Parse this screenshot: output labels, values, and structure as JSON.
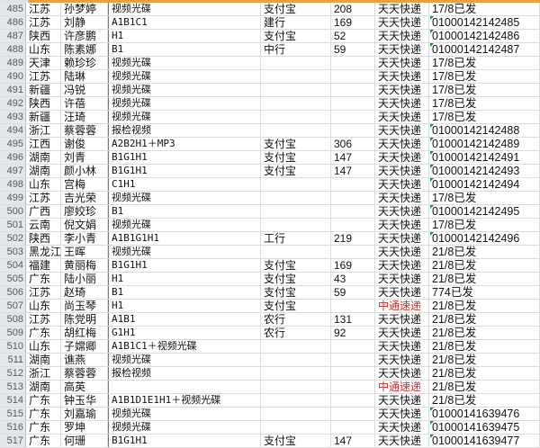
{
  "colors": {
    "header_accent": "#e8a040",
    "red_courier": "#c8322e",
    "text_flag": "#1a8a2a"
  },
  "rows": [
    {
      "n": "485",
      "prov": "江苏",
      "name": "孙梦婷",
      "prod": "视频光碟",
      "pay": "支付宝",
      "amt": "208",
      "cour": "天天快递",
      "track": "17/8已发",
      "flag": false,
      "red": false
    },
    {
      "n": "486",
      "prov": "江苏",
      "name": "刘静",
      "prod": "A1B1C1",
      "pay": "建行",
      "amt": "169",
      "cour": "天天快递",
      "track": "01000142142485",
      "flag": true,
      "red": false
    },
    {
      "n": "487",
      "prov": "陕西",
      "name": "许彦鹏",
      "prod": "H1",
      "pay": "支付宝",
      "amt": "52",
      "cour": "天天快递",
      "track": "01000142142486",
      "flag": true,
      "red": false
    },
    {
      "n": "488",
      "prov": "山东",
      "name": "陈素娜",
      "prod": "B1",
      "pay": "中行",
      "amt": "59",
      "cour": "天天快递",
      "track": "01000142142487",
      "flag": true,
      "red": false
    },
    {
      "n": "489",
      "prov": "天津",
      "name": "赖珍珍",
      "prod": "视频光碟",
      "pay": "",
      "amt": "",
      "cour": "天天快递",
      "track": "17/8已发",
      "flag": false,
      "red": false
    },
    {
      "n": "490",
      "prov": "江苏",
      "name": "陆琳",
      "prod": "视频光碟",
      "pay": "",
      "amt": "",
      "cour": "天天快递",
      "track": "17/8已发",
      "flag": false,
      "red": false
    },
    {
      "n": "491",
      "prov": "新疆",
      "name": "冯锐",
      "prod": "视频光碟",
      "pay": "",
      "amt": "",
      "cour": "天天快递",
      "track": "17/8已发",
      "flag": false,
      "red": false
    },
    {
      "n": "492",
      "prov": "陕西",
      "name": "许蓓",
      "prod": "视频光碟",
      "pay": "",
      "amt": "",
      "cour": "天天快递",
      "track": "17/8已发",
      "flag": false,
      "red": false
    },
    {
      "n": "493",
      "prov": "新疆",
      "name": "汪琦",
      "prod": "视频光碟",
      "pay": "",
      "amt": "",
      "cour": "天天快递",
      "track": "17/8已发",
      "flag": false,
      "red": false
    },
    {
      "n": "494",
      "prov": "浙江",
      "name": "蔡蓉蓉",
      "prod": "报检视频",
      "pay": "",
      "amt": "",
      "cour": "天天快递",
      "track": "01000142142488",
      "flag": true,
      "red": false
    },
    {
      "n": "495",
      "prov": "江西",
      "name": "谢俊",
      "prod": "A2B2H1＋MP3",
      "pay": "支付宝",
      "amt": "306",
      "cour": "天天快递",
      "track": "01000142142489",
      "flag": true,
      "red": false
    },
    {
      "n": "496",
      "prov": "湖南",
      "name": "刘青",
      "prod": "B1G1H1",
      "pay": "支付宝",
      "amt": "147",
      "cour": "天天快递",
      "track": "01000142142491",
      "flag": true,
      "red": false
    },
    {
      "n": "497",
      "prov": "湖南",
      "name": "颜小林",
      "prod": "B1G1H1",
      "pay": "支付宝",
      "amt": "147",
      "cour": "天天快递",
      "track": "01000142142493",
      "flag": true,
      "red": false
    },
    {
      "n": "498",
      "prov": "山东",
      "name": "宫梅",
      "prod": "C1H1",
      "pay": "",
      "amt": "",
      "cour": "天天快递",
      "track": "01000142142494",
      "flag": true,
      "red": false
    },
    {
      "n": "499",
      "prov": "江苏",
      "name": "吉光荣",
      "prod": "视频光碟",
      "pay": "",
      "amt": "",
      "cour": "天天快递",
      "track": "17/8已发",
      "flag": false,
      "red": false
    },
    {
      "n": "500",
      "prov": "广西",
      "name": "廖姣珍",
      "prod": "B1",
      "pay": "",
      "amt": "",
      "cour": "天天快递",
      "track": "01000142142495",
      "flag": true,
      "red": false
    },
    {
      "n": "501",
      "prov": "云南",
      "name": "倪文娟",
      "prod": "视频光碟",
      "pay": "",
      "amt": "",
      "cour": "天天快递",
      "track": "17/8已发",
      "flag": false,
      "red": false
    },
    {
      "n": "502",
      "prov": "陕西",
      "name": "李小青",
      "prod": "A1B1G1H1",
      "pay": "工行",
      "amt": "219",
      "cour": "天天快递",
      "track": "01000142142496",
      "flag": true,
      "red": false
    },
    {
      "n": "503",
      "prov": "黑龙江",
      "name": "王晖",
      "prod": "视频光碟",
      "pay": "",
      "amt": "",
      "cour": "天天快递",
      "track": "21/8已发",
      "flag": false,
      "red": false
    },
    {
      "n": "504",
      "prov": "福建",
      "name": "黄丽梅",
      "prod": "B1G1H1",
      "pay": "支付宝",
      "amt": "169",
      "cour": "天天快递",
      "track": "21/8已发",
      "flag": false,
      "red": false
    },
    {
      "n": "505",
      "prov": "广东",
      "name": "陆小丽",
      "prod": "H1",
      "pay": "支付宝",
      "amt": "43",
      "cour": "天天快递",
      "track": "21/8已发",
      "flag": false,
      "red": false
    },
    {
      "n": "506",
      "prov": "江苏",
      "name": "赵琦",
      "prod": "B1",
      "pay": "支付宝",
      "amt": "59",
      "cour": "天天快递",
      "track": "774已发",
      "flag": false,
      "red": false
    },
    {
      "n": "507",
      "prov": "山东",
      "name": "尚玉琴",
      "prod": "H1",
      "pay": "支付宝",
      "amt": "",
      "cour": "中通速递",
      "track": "21/8已发",
      "flag": false,
      "red": true
    },
    {
      "n": "508",
      "prov": "江苏",
      "name": "陈党明",
      "prod": "A1B1",
      "pay": "农行",
      "amt": "131",
      "cour": "天天快递",
      "track": "21/8已发",
      "flag": false,
      "red": false
    },
    {
      "n": "509",
      "prov": "广东",
      "name": "胡红梅",
      "prod": "G1H1",
      "pay": "农行",
      "amt": "92",
      "cour": "天天快递",
      "track": "21/8已发",
      "flag": false,
      "red": false
    },
    {
      "n": "510",
      "prov": "山东",
      "name": "子嫦卿",
      "prod": "A1B1C1＋视频光碟",
      "pay": "",
      "amt": "",
      "cour": "天天快递",
      "track": "21/8已发",
      "flag": false,
      "red": false
    },
    {
      "n": "511",
      "prov": "湖南",
      "name": "谯燕",
      "prod": "视频光碟",
      "pay": "",
      "amt": "",
      "cour": "天天快递",
      "track": "21/8已发",
      "flag": false,
      "red": false
    },
    {
      "n": "512",
      "prov": "浙江",
      "name": "蔡蓉蓉",
      "prod": "报检视频",
      "pay": "",
      "amt": "",
      "cour": "天天快递",
      "track": "21/8已发",
      "flag": false,
      "red": false
    },
    {
      "n": "513",
      "prov": "湖南",
      "name": "高英",
      "prod": "",
      "pay": "",
      "amt": "",
      "cour": "中通速递",
      "track": "21/8已发",
      "flag": false,
      "red": true
    },
    {
      "n": "514",
      "prov": "广东",
      "name": "钟玉华",
      "prod": "A1B1D1E1H1＋视频光碟",
      "pay": "",
      "amt": "",
      "cour": "天天快递",
      "track": "21/8已发",
      "flag": false,
      "red": false
    },
    {
      "n": "515",
      "prov": "广东",
      "name": "刘嘉瑜",
      "prod": "视频光碟",
      "pay": "",
      "amt": "",
      "cour": "天天快递",
      "track": "01000141639476",
      "flag": true,
      "red": false
    },
    {
      "n": "516",
      "prov": "广东",
      "name": "罗坤",
      "prod": "视频光碟",
      "pay": "",
      "amt": "",
      "cour": "天天快递",
      "track": "01000141639475",
      "flag": true,
      "red": false
    },
    {
      "n": "517",
      "prov": "广东",
      "name": "何珊",
      "prod": "B1G1H1",
      "pay": "支付宝",
      "amt": "147",
      "cour": "天天快递",
      "track": "01000141639477",
      "flag": true,
      "red": false
    }
  ]
}
